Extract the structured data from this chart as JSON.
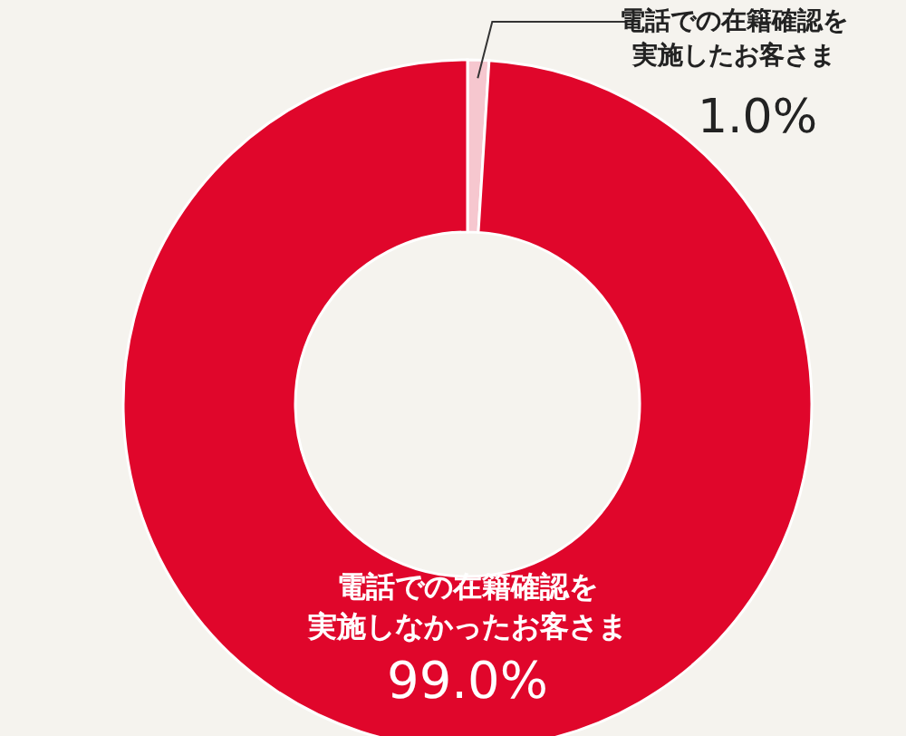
{
  "chart_data": {
    "type": "donut",
    "categories": [
      "電話での在籍確認を実施したお客さま",
      "電話での在籍確認を実施しなかったお客さま"
    ],
    "values": [
      1.0,
      99.0
    ],
    "colors": [
      "#f6c7cf",
      "#e0062b"
    ],
    "value_labels": [
      "1.0%",
      "99.0%"
    ]
  }
}
